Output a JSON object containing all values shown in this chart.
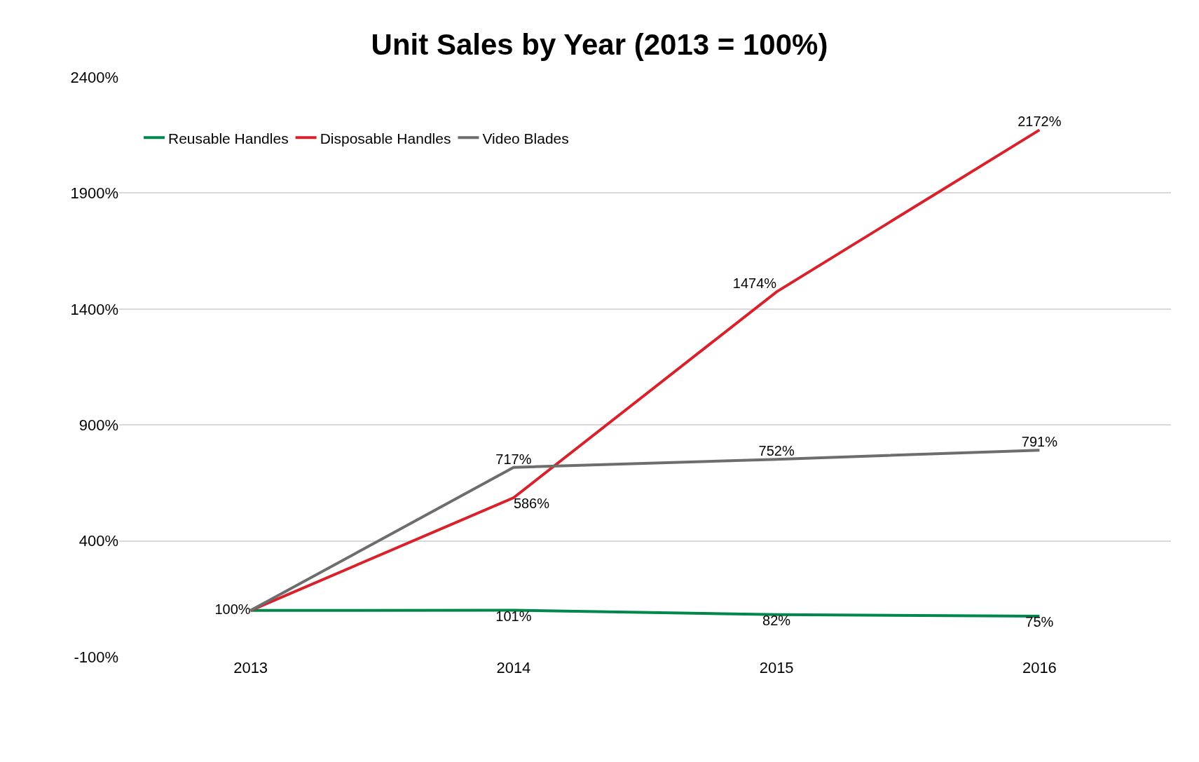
{
  "chart_data": {
    "type": "line",
    "title": "Unit Sales by Year (2013 = 100%)",
    "categories": [
      "2013",
      "2014",
      "2015",
      "2016"
    ],
    "series": [
      {
        "name": "Reusable Handles",
        "color": "#00874a",
        "values": [
          100,
          101,
          82,
          75
        ],
        "value_labels": [
          null,
          "101%",
          "82%",
          "75%"
        ]
      },
      {
        "name": "Disposable Handles",
        "color": "#d9212b",
        "values": [
          100,
          586,
          1474,
          2172
        ],
        "value_labels": [
          null,
          "586%",
          "1474%",
          "2172%"
        ]
      },
      {
        "name": "Video Blades",
        "color": "#6d6d6d",
        "values": [
          100,
          717,
          752,
          791
        ],
        "value_labels": [
          "100%",
          "717%",
          "752%",
          "791%"
        ]
      }
    ],
    "ylim": [
      -100,
      2400
    ],
    "yticks": [
      {
        "value": -100,
        "label": "-100%"
      },
      {
        "value": 400,
        "label": "400%"
      },
      {
        "value": 900,
        "label": "900%"
      },
      {
        "value": 1400,
        "label": "1400%"
      },
      {
        "value": 1900,
        "label": "1900%"
      },
      {
        "value": 2400,
        "label": "2400%"
      }
    ],
    "grid": "y",
    "legend": "top left",
    "marker": "none",
    "line_style": "solid"
  }
}
